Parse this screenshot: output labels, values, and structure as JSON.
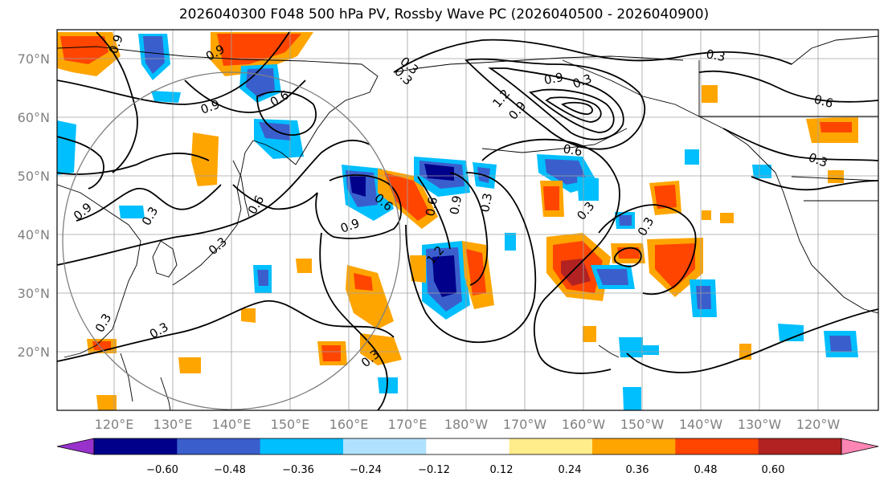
{
  "title": "2026040300 F048 500 hPa PV, Rossby Wave PC (2026040500 - 2026040900)",
  "lat_labels": [
    "70°N",
    "60°N",
    "50°N",
    "40°N",
    "30°N",
    "20°N"
  ],
  "lon_labels": [
    "120°E",
    "130°E",
    "140°E",
    "150°E",
    "160°E",
    "170°E",
    "180°W",
    "170°W",
    "160°W",
    "150°W",
    "140°W",
    "130°W",
    "120°W"
  ],
  "contour_labels": [
    "0.9",
    "0.9",
    "0.9",
    "0.3",
    "0.3",
    "0.9",
    "0.6",
    "0.3",
    "1.2",
    "0.3",
    "0.6",
    "0.3",
    "0.3",
    "0.6",
    "0.9",
    "0.3",
    "0.3",
    "0.9",
    "0.6",
    "0.3",
    "0.9",
    "0.3",
    "0.9",
    "1.2",
    "0.6",
    "0.3",
    "0.3",
    "0.6",
    "0.3"
  ],
  "colorbar": {
    "ticks": [
      "−0.60",
      "−0.48",
      "−0.36",
      "−0.24",
      "−0.12",
      "0.12",
      "0.24",
      "0.36",
      "0.48",
      "0.60"
    ],
    "colors": [
      "#9932cc",
      "#00008b",
      "#3a5fcd",
      "#00bfff",
      "#b0e2ff",
      "#ffffff",
      "#ffec8b",
      "#ffa500",
      "#ff4500",
      "#b22222",
      "#ff86b4"
    ]
  },
  "colors": {
    "grid": "#a0a0a0",
    "neg_strong": "#00008b",
    "neg_mid": "#3a5fcd",
    "neg_light": "#00bfff",
    "neg_pale": "#b0e2ff",
    "pos_pale": "#ffec8b",
    "pos_light": "#ffa500",
    "pos_mid": "#ff4500",
    "pos_strong": "#b22222"
  }
}
